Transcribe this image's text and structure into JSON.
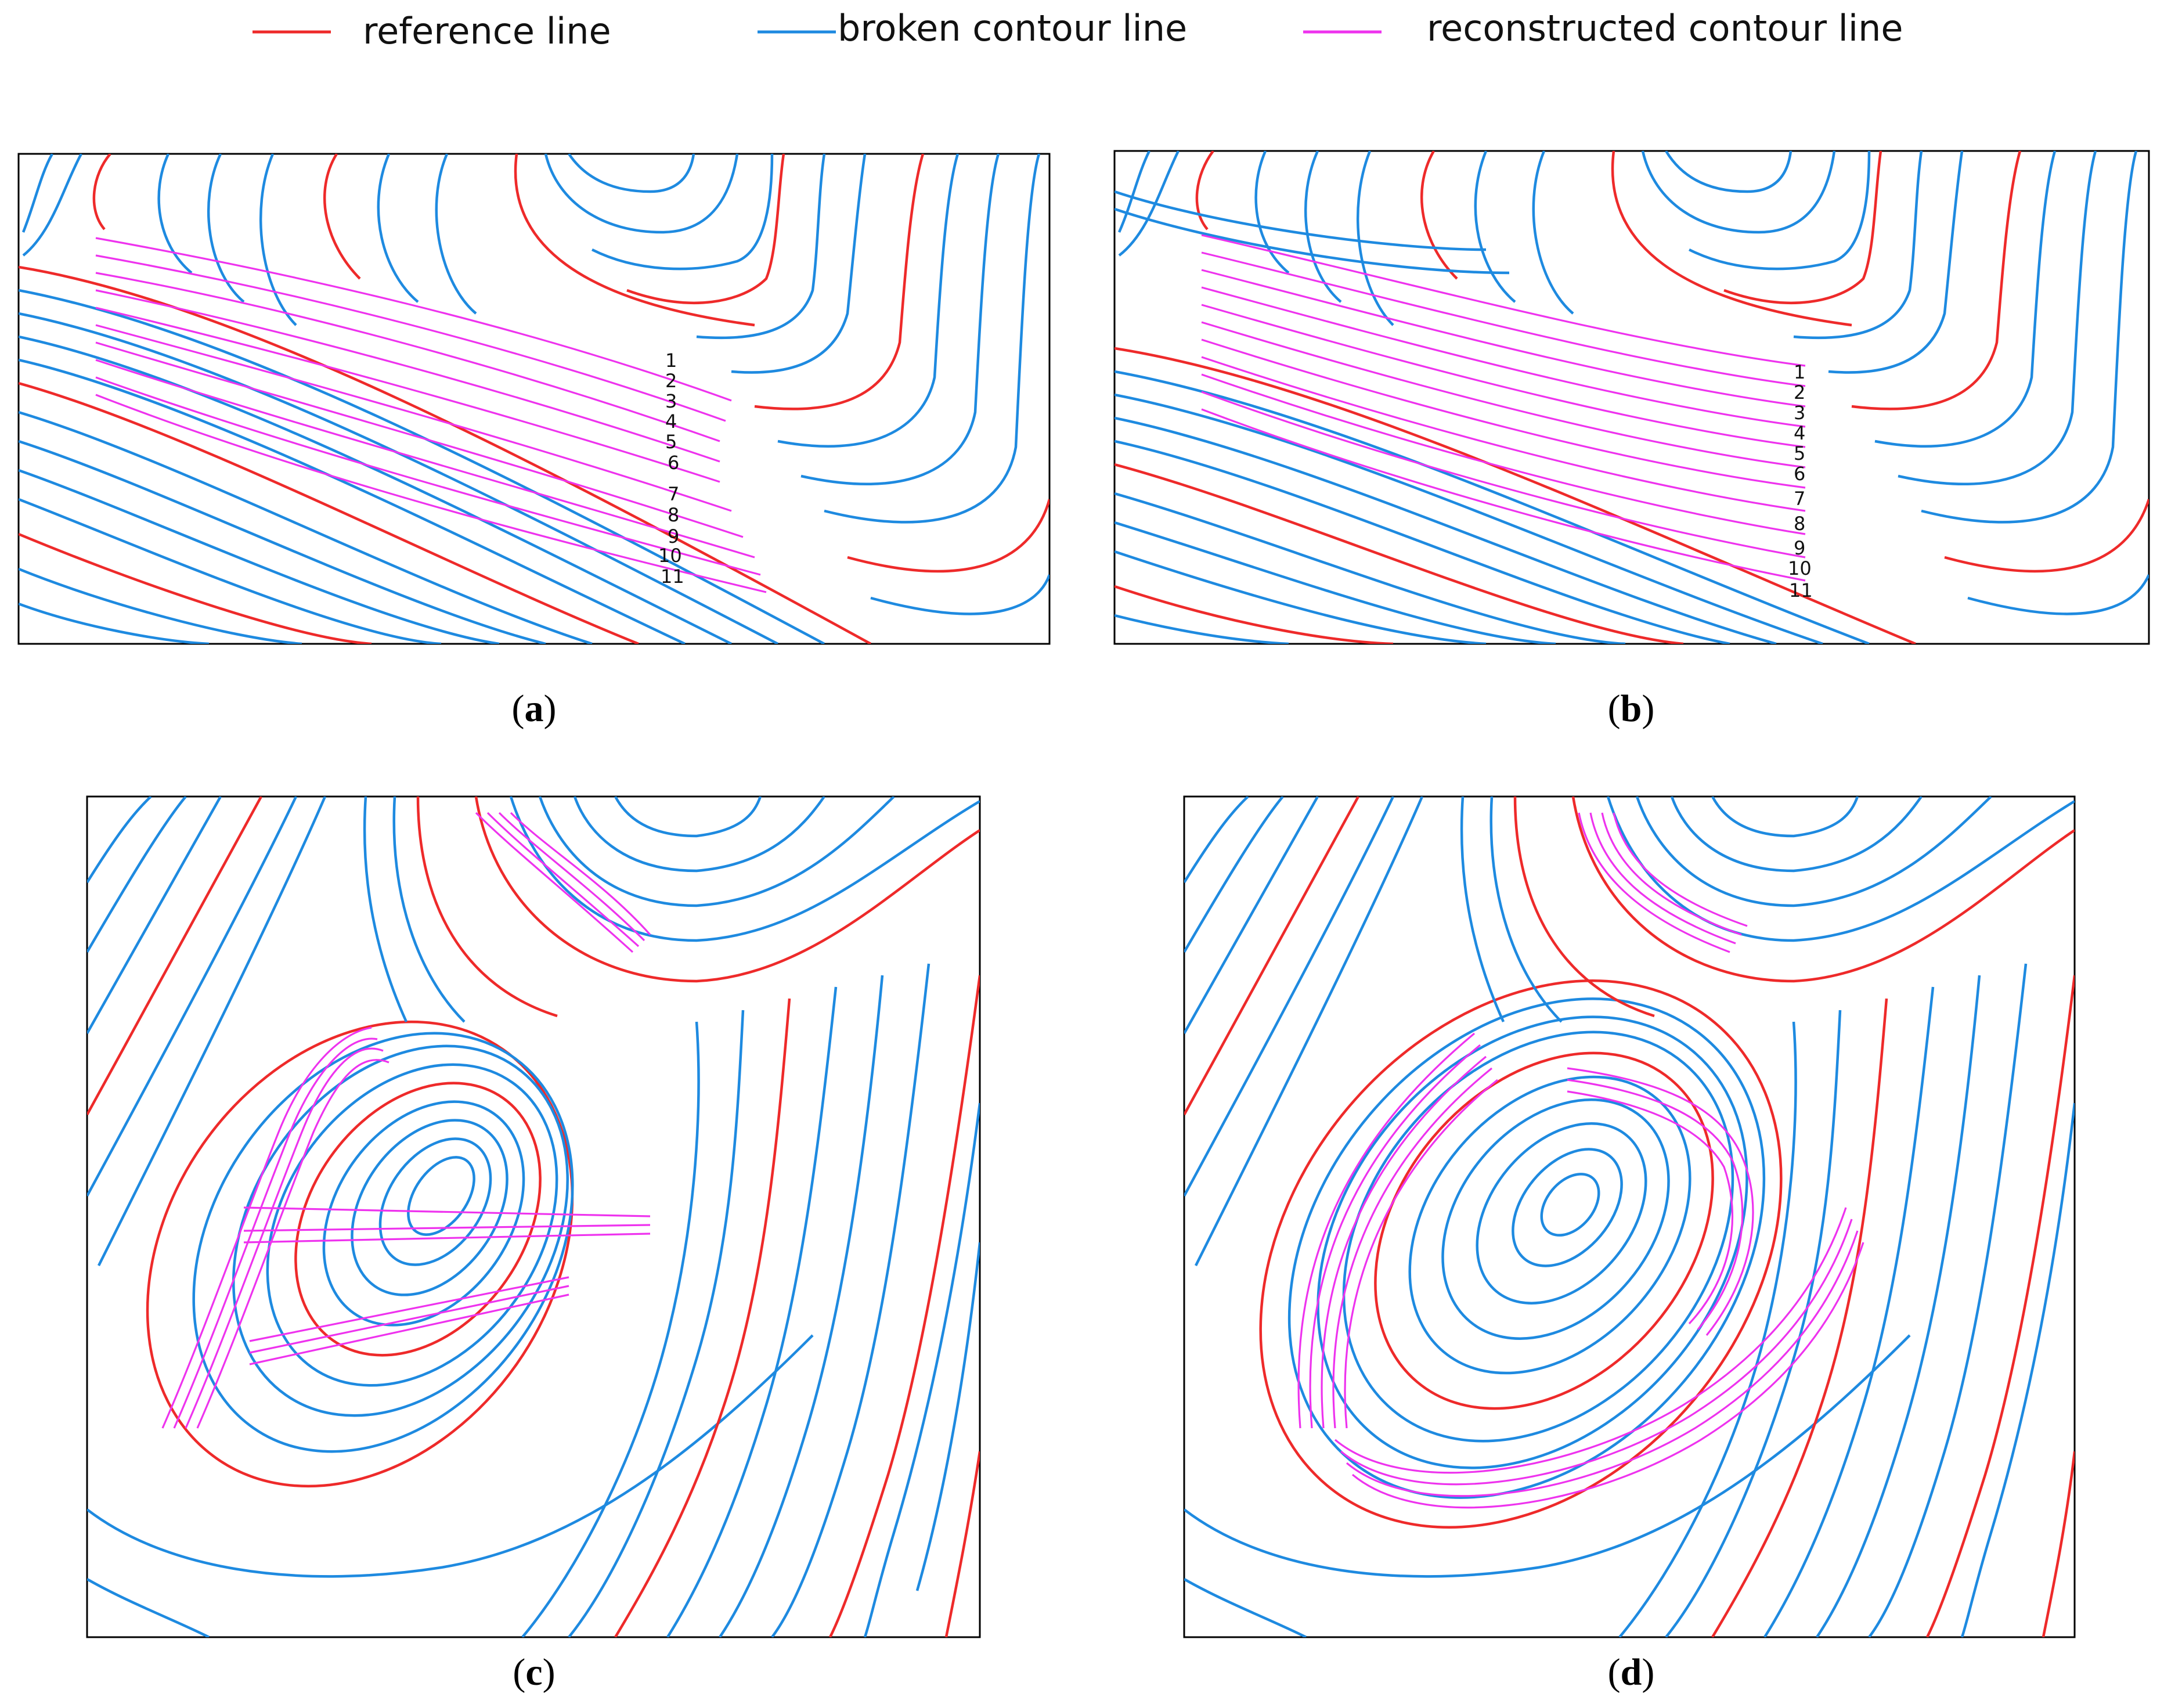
{
  "legend": {
    "items": [
      {
        "label": "reference line",
        "color": "#ee2a2a"
      },
      {
        "label": "broken contour line",
        "color": "#1e8ae0"
      },
      {
        "label": "reconstructed contour line",
        "color": "#ee33ee"
      }
    ]
  },
  "panels": [
    {
      "id": "a",
      "caption": "a",
      "line_labels": [
        "1",
        "2",
        "3",
        "4",
        "5",
        "6",
        "7",
        "8",
        "9",
        "10",
        "11"
      ]
    },
    {
      "id": "b",
      "caption": "b",
      "line_labels": [
        "1",
        "2",
        "3",
        "4",
        "5",
        "6",
        "7",
        "8",
        "9",
        "10",
        "11"
      ]
    },
    {
      "id": "c",
      "caption": "c",
      "line_labels": []
    },
    {
      "id": "d",
      "caption": "d",
      "line_labels": []
    }
  ],
  "colors": {
    "reference": "#ee2a2a",
    "broken": "#1e8ae0",
    "reconstructed": "#ee33ee"
  }
}
